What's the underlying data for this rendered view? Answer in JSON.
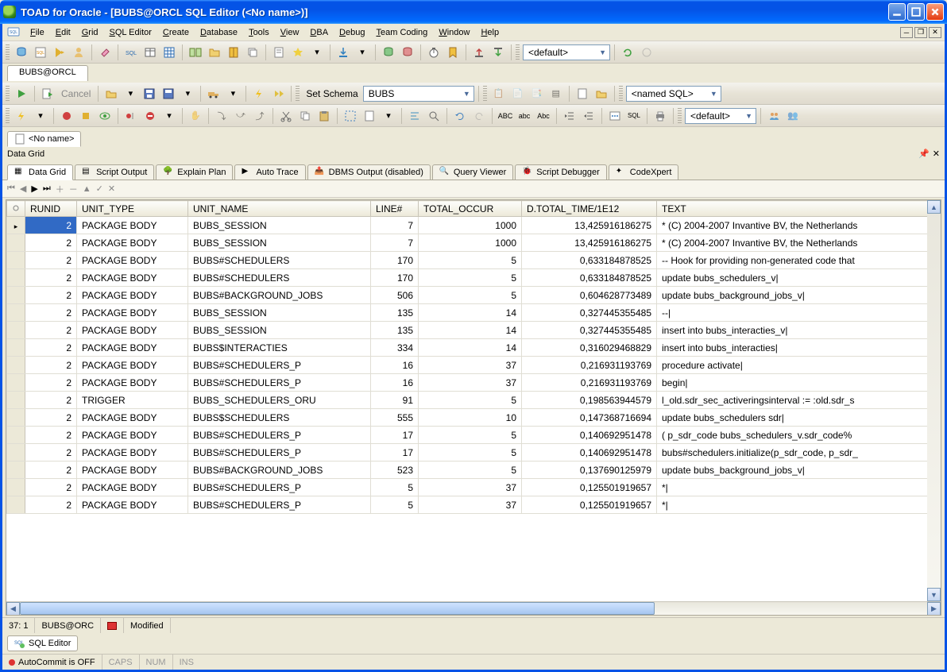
{
  "window": {
    "title": "TOAD for Oracle - [BUBS@ORCL SQL Editor (<No name>)]"
  },
  "menu": {
    "items": [
      "File",
      "Edit",
      "Grid",
      "SQL Editor",
      "Create",
      "Database",
      "Tools",
      "View",
      "DBA",
      "Debug",
      "Team Coding",
      "Window",
      "Help"
    ]
  },
  "connection_tab": "BUBS@ORCL",
  "toolbar1": {
    "default_combo": "<default>"
  },
  "toolbar2": {
    "cancel_label": "Cancel",
    "schema_label": "Set Schema",
    "schema_value": "BUBS",
    "named_sql": "<named SQL>"
  },
  "toolbar3": {
    "default_combo": "<default>"
  },
  "doc_tab": "<No name>",
  "section_title": "Data Grid",
  "result_tabs": [
    "Data Grid",
    "Script Output",
    "Explain Plan",
    "Auto Trace",
    "DBMS Output (disabled)",
    "Query Viewer",
    "Script Debugger",
    "CodeXpert"
  ],
  "grid": {
    "columns": [
      "RUNID",
      "UNIT_TYPE",
      "UNIT_NAME",
      "LINE#",
      "TOTAL_OCCUR",
      "D.TOTAL_TIME/1E12",
      "TEXT"
    ],
    "rows": [
      {
        "runid": "2",
        "ut": "PACKAGE BODY",
        "un": "BUBS_SESSION",
        "line": "7",
        "occ": "1000",
        "time": "13,425916186275",
        "text": "* (C) 2004-2007 Invantive BV, the Netherlands"
      },
      {
        "runid": "2",
        "ut": "PACKAGE BODY",
        "un": "BUBS_SESSION",
        "line": "7",
        "occ": "1000",
        "time": "13,425916186275",
        "text": "* (C) 2004-2007 Invantive BV, the Netherlands"
      },
      {
        "runid": "2",
        "ut": "PACKAGE BODY",
        "un": "BUBS#SCHEDULERS",
        "line": "170",
        "occ": "5",
        "time": "0,633184878525",
        "text": "  -- Hook for providing non-generated code that"
      },
      {
        "runid": "2",
        "ut": "PACKAGE BODY",
        "un": "BUBS#SCHEDULERS",
        "line": "170",
        "occ": "5",
        "time": "0,633184878525",
        "text": "  update bubs_schedulers_v|"
      },
      {
        "runid": "2",
        "ut": "PACKAGE BODY",
        "un": "BUBS#BACKGROUND_JOBS",
        "line": "506",
        "occ": "5",
        "time": "0,604628773489",
        "text": "  update bubs_background_jobs_v|"
      },
      {
        "runid": "2",
        "ut": "PACKAGE BODY",
        "un": "BUBS_SESSION",
        "line": "135",
        "occ": "14",
        "time": "0,327445355485",
        "text": "  --|"
      },
      {
        "runid": "2",
        "ut": "PACKAGE BODY",
        "un": "BUBS_SESSION",
        "line": "135",
        "occ": "14",
        "time": "0,327445355485",
        "text": "    insert into bubs_interacties_v|"
      },
      {
        "runid": "2",
        "ut": "PACKAGE BODY",
        "un": "BUBS$INTERACTIES",
        "line": "334",
        "occ": "14",
        "time": "0,316029468829",
        "text": "      insert into bubs_interacties|"
      },
      {
        "runid": "2",
        "ut": "PACKAGE BODY",
        "un": "BUBS#SCHEDULERS_P",
        "line": "16",
        "occ": "37",
        "time": "0,216931193769",
        "text": "procedure activate|"
      },
      {
        "runid": "2",
        "ut": "PACKAGE BODY",
        "un": "BUBS#SCHEDULERS_P",
        "line": "16",
        "occ": "37",
        "time": "0,216931193769",
        "text": "begin|"
      },
      {
        "runid": "2",
        "ut": "TRIGGER",
        "un": "BUBS_SCHEDULERS_ORU",
        "line": "91",
        "occ": "5",
        "time": "0,198563944579",
        "text": "l_old.sdr_sec_activeringsinterval    := :old.sdr_s"
      },
      {
        "runid": "2",
        "ut": "PACKAGE BODY",
        "un": "BUBS$SCHEDULERS",
        "line": "555",
        "occ": "10",
        "time": "0,147368716694",
        "text": "    update bubs_schedulers sdr|"
      },
      {
        "runid": "2",
        "ut": "PACKAGE BODY",
        "un": "BUBS#SCHEDULERS_P",
        "line": "17",
        "occ": "5",
        "time": "0,140692951478",
        "text": "( p_sdr_code      bubs_schedulers_v.sdr_code%"
      },
      {
        "runid": "2",
        "ut": "PACKAGE BODY",
        "un": "BUBS#SCHEDULERS_P",
        "line": "17",
        "occ": "5",
        "time": "0,140692951478",
        "text": "  bubs#schedulers.initialize(p_sdr_code, p_sdr_"
      },
      {
        "runid": "2",
        "ut": "PACKAGE BODY",
        "un": "BUBS#BACKGROUND_JOBS",
        "line": "523",
        "occ": "5",
        "time": "0,137690125979",
        "text": "  update bubs_background_jobs_v|"
      },
      {
        "runid": "2",
        "ut": "PACKAGE BODY",
        "un": "BUBS#SCHEDULERS_P",
        "line": "5",
        "occ": "37",
        "time": "0,125501919657",
        "text": "*|"
      },
      {
        "runid": "2",
        "ut": "PACKAGE BODY",
        "un": "BUBS#SCHEDULERS_P",
        "line": "5",
        "occ": "37",
        "time": "0,125501919657",
        "text": "*|"
      }
    ]
  },
  "status": {
    "pos": "37: 1",
    "conn": "BUBS@ORC",
    "modified": "Modified",
    "autocommit": "AutoCommit is OFF",
    "caps": "CAPS",
    "num": "NUM",
    "ins": "INS"
  },
  "bottom_tab": "SQL Editor",
  "colors": {
    "titlebar": "#0453e6",
    "bg": "#ece9d8",
    "selection": "#316ac5"
  }
}
